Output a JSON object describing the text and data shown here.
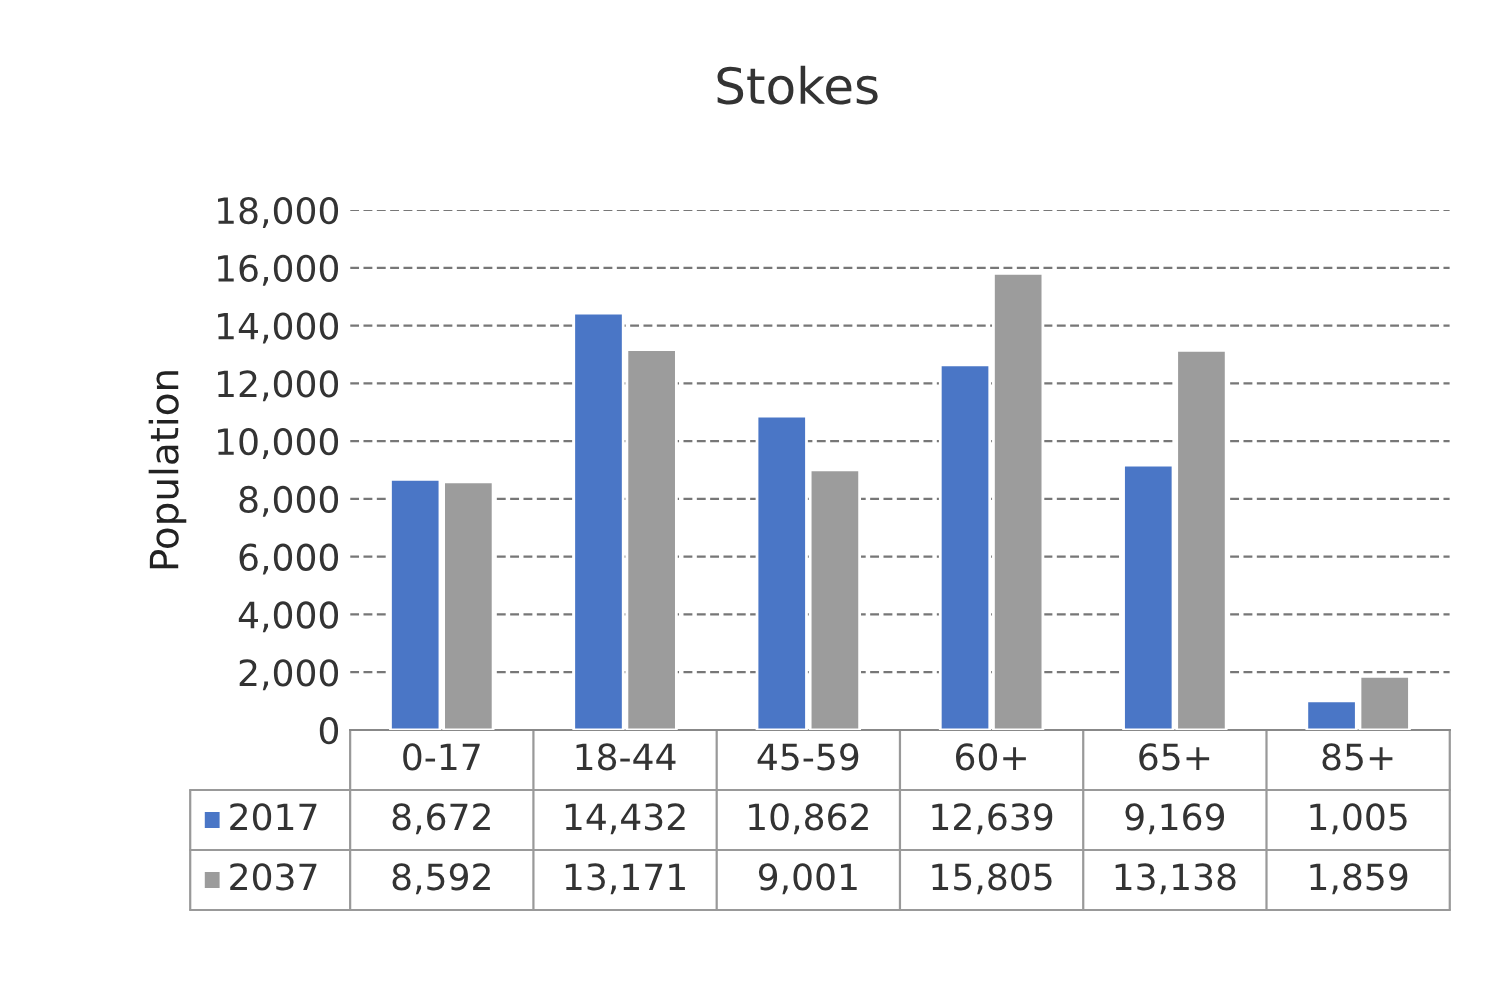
{
  "chart_data": {
    "type": "bar",
    "title": "Stokes",
    "ylabel": "Population",
    "categories": [
      "0-17",
      "18-44",
      "45-59",
      "60+",
      "65+",
      "85+"
    ],
    "series": [
      {
        "name": "2017",
        "color": "#4a76c6",
        "values": [
          8672,
          14432,
          10862,
          12639,
          9169,
          1005
        ],
        "value_labels": [
          "8,672",
          "14,432",
          "10,862",
          "12,639",
          "9,169",
          "1,005"
        ]
      },
      {
        "name": "2037",
        "color": "#9c9c9c",
        "values": [
          8592,
          13171,
          9001,
          15805,
          13138,
          1859
        ],
        "value_labels": [
          "8,592",
          "13,171",
          "9,001",
          "15,805",
          "13,138",
          "1,859"
        ]
      }
    ],
    "ylim": [
      0,
      18000
    ],
    "yticks": [
      0,
      {
        "value": 2000,
        "label": "2,000"
      },
      {
        "value": 4000,
        "label": "4,000"
      },
      {
        "value": 6000,
        "label": "6,000"
      },
      {
        "value": 8000,
        "label": "8,000"
      },
      {
        "value": 10000,
        "label": "10,000"
      },
      {
        "value": 12000,
        "label": "12,000"
      },
      {
        "value": 14000,
        "label": "14,000"
      },
      {
        "value": 16000,
        "label": "16,000"
      },
      {
        "value": 18000,
        "label": "18,000"
      }
    ],
    "grid": "y",
    "legend": "bottom"
  }
}
